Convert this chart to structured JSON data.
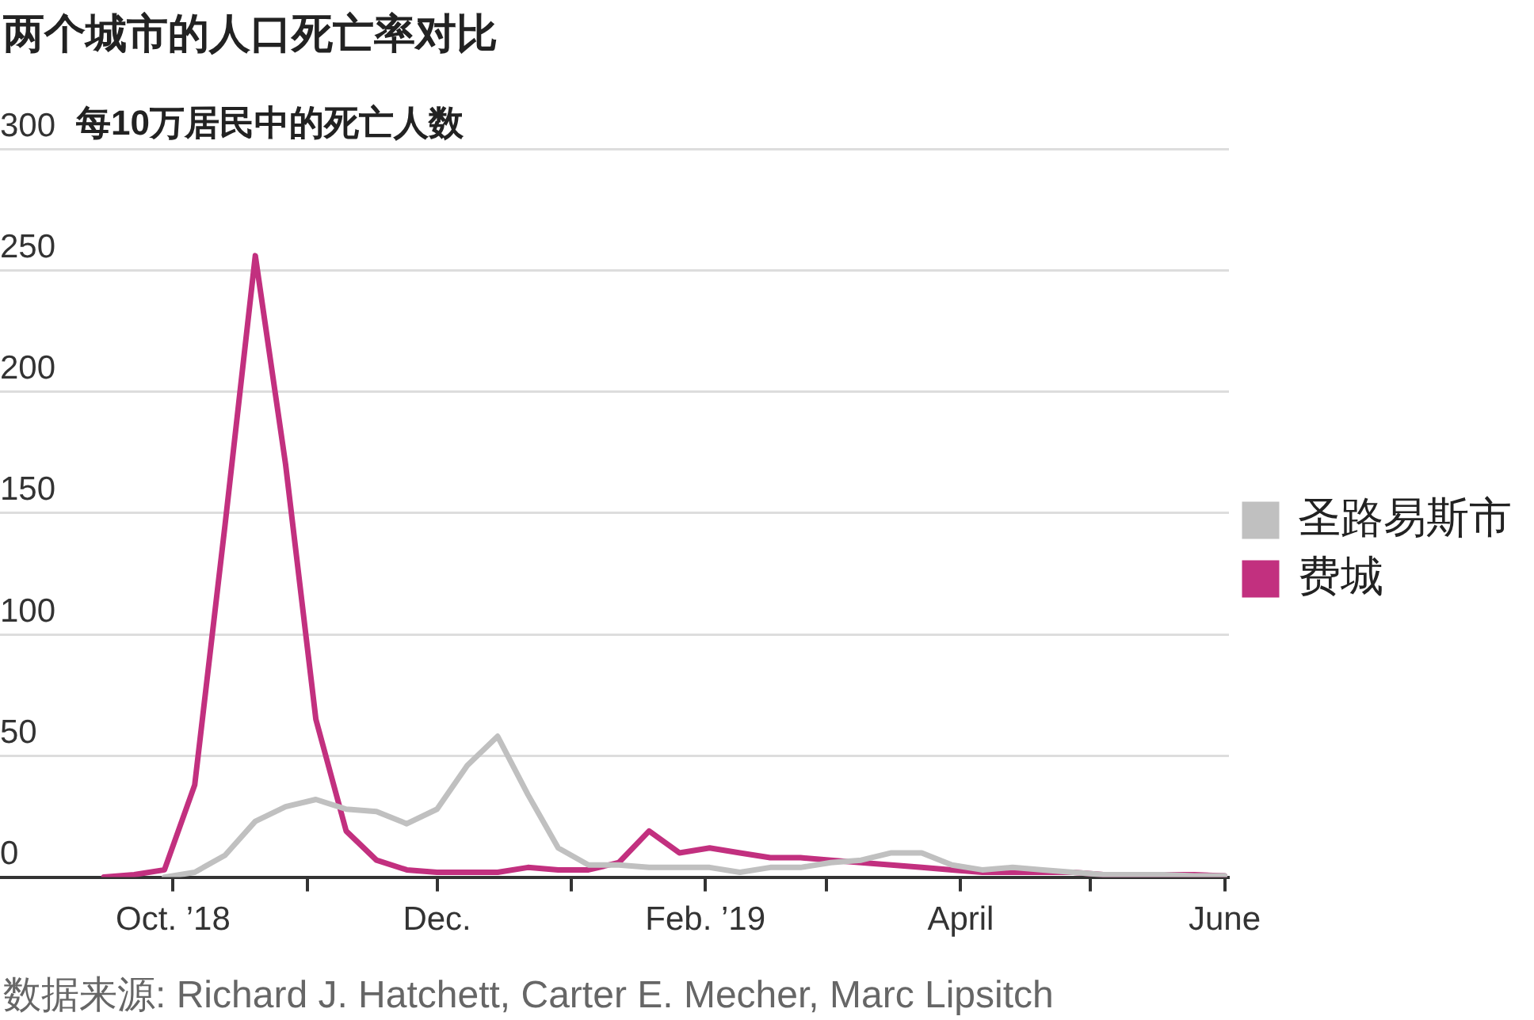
{
  "chart_data": {
    "type": "line",
    "title": "两个城市的人口死亡率对比",
    "ylabel": "每10万居民中的死亡人数",
    "annotations": [
      "数据来源: Richard J. Hatchett, Carter E. Mecher, Marc Lipsitch"
    ],
    "x": [
      "2018-09-15",
      "2018-09-22",
      "2018-09-29",
      "2018-10-06",
      "2018-10-13",
      "2018-10-20",
      "2018-10-27",
      "2018-11-03",
      "2018-11-10",
      "2018-11-17",
      "2018-11-24",
      "2018-12-01",
      "2018-12-08",
      "2018-12-15",
      "2018-12-22",
      "2018-12-29",
      "2019-01-05",
      "2019-01-12",
      "2019-01-19",
      "2019-01-26",
      "2019-02-02",
      "2019-02-09",
      "2019-02-16",
      "2019-02-23",
      "2019-03-02",
      "2019-03-09",
      "2019-03-16",
      "2019-03-23",
      "2019-03-30",
      "2019-04-06",
      "2019-04-13",
      "2019-04-20",
      "2019-04-27",
      "2019-05-04",
      "2019-05-11",
      "2019-05-18",
      "2019-05-25",
      "2019-06-01"
    ],
    "series": [
      {
        "name": "圣路易斯市",
        "color": "#c0c0c0",
        "values": [
          null,
          null,
          0,
          2,
          9,
          23,
          29,
          32,
          28,
          27,
          22,
          28,
          46,
          58,
          34,
          12,
          5,
          5,
          4,
          4,
          4,
          2,
          4,
          4,
          6,
          7,
          10,
          10,
          5,
          3,
          4,
          3,
          2,
          1,
          1,
          1,
          0.5,
          0.5
        ]
      },
      {
        "name": "费城",
        "color": "#c2307f",
        "values": [
          0,
          1,
          3,
          38,
          145,
          256,
          170,
          65,
          19,
          7,
          3,
          2,
          2,
          2,
          4,
          3,
          3,
          6,
          19,
          10,
          12,
          10,
          8,
          8,
          7,
          6,
          5,
          4,
          3,
          2,
          2,
          2,
          2,
          1,
          1,
          1,
          1,
          0.5
        ]
      }
    ],
    "xlim": [
      "2018-08-22",
      "2019-06-02"
    ],
    "xticks": [
      {
        "value": "2018-10-01",
        "label": "Oct. ’18"
      },
      {
        "value": "2018-11-01",
        "label": null
      },
      {
        "value": "2018-12-01",
        "label": "Dec."
      },
      {
        "value": "2019-01-01",
        "label": null
      },
      {
        "value": "2019-02-01",
        "label": "Feb. ’19"
      },
      {
        "value": "2019-03-01",
        "label": null
      },
      {
        "value": "2019-04-01",
        "label": "April"
      },
      {
        "value": "2019-05-01",
        "label": null
      },
      {
        "value": "2019-06-01",
        "label": "June"
      }
    ],
    "ylim": [
      0,
      300
    ],
    "yticks": [
      0,
      50,
      100,
      150,
      200,
      250,
      300
    ],
    "grid": "y",
    "legend": "right",
    "marker": "none",
    "line_style": "solid"
  }
}
